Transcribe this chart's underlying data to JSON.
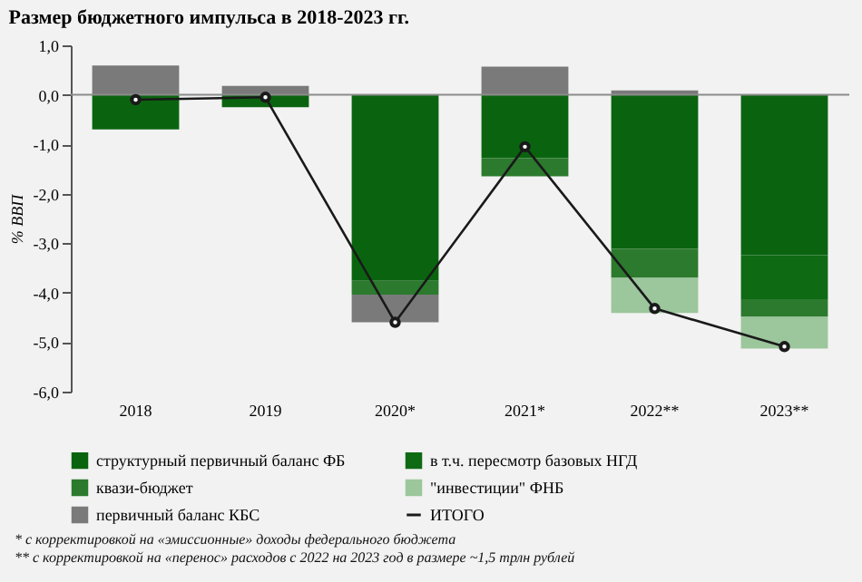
{
  "chart_data": {
    "type": "bar",
    "stacked": true,
    "title": "Размер бюджетного импульса в 2018-2023 гг.",
    "ylabel": "% ВВП",
    "categories": [
      "2018",
      "2019",
      "2020*",
      "2021*",
      "2022**",
      "2023**"
    ],
    "series": [
      {
        "name": "структурный первичный баланс ФБ",
        "color": "#0a640f",
        "values": [
          -0.7,
          -0.25,
          -3.76,
          -1.28,
          -3.11,
          -3.24
        ]
      },
      {
        "name": "в т.ч. пересмотр базовых НГД",
        "color": "#0f6a14",
        "values": [
          0,
          0,
          0,
          0,
          0,
          -0.89
        ]
      },
      {
        "name": "квази-бюджет",
        "color": "#2c7a2e",
        "values": [
          0,
          0,
          -0.28,
          -0.37,
          -0.59,
          -0.36
        ]
      },
      {
        "name": "\"инвестиции\" ФНБ",
        "color": "#9cc69c",
        "values": [
          0,
          0,
          0,
          0,
          -0.71,
          -0.64
        ]
      },
      {
        "name": "первичный баланс КБС",
        "color": "#7a7a7a",
        "values": [
          0.59,
          0.18,
          -0.56,
          0.57,
          0.09,
          0
        ]
      },
      {
        "name": "ИТОГО",
        "type": "line",
        "color": "#1a1a1a",
        "marker": "circle",
        "values": [
          -0.1,
          -0.05,
          -4.6,
          -1.05,
          -4.32,
          -5.09
        ]
      }
    ],
    "ylim": [
      -6,
      1
    ],
    "yticks": [
      {
        "value": 1,
        "label": "1,0"
      },
      {
        "value": 0,
        "label": "0,0"
      },
      {
        "value": -1,
        "label": "-1,0"
      },
      {
        "value": -2,
        "label": "-2,0"
      },
      {
        "value": -3,
        "label": "-3,0"
      },
      {
        "value": -4,
        "label": "-4,0"
      },
      {
        "value": -5,
        "label": "-5,0"
      },
      {
        "value": -6,
        "label": "-6,0"
      }
    ],
    "ref_lines": [
      {
        "axis": "y",
        "value": 0,
        "color": "#8c8c8c"
      }
    ],
    "legend": "bottom",
    "grid": false,
    "annotations": [
      "* с корректировкой на «эмиссионные» доходы федерального бюджета",
      "** с корректировкой на «перенос» расходов с 2022 на 2023 год в размере ~1,5 трлн рублей"
    ]
  }
}
